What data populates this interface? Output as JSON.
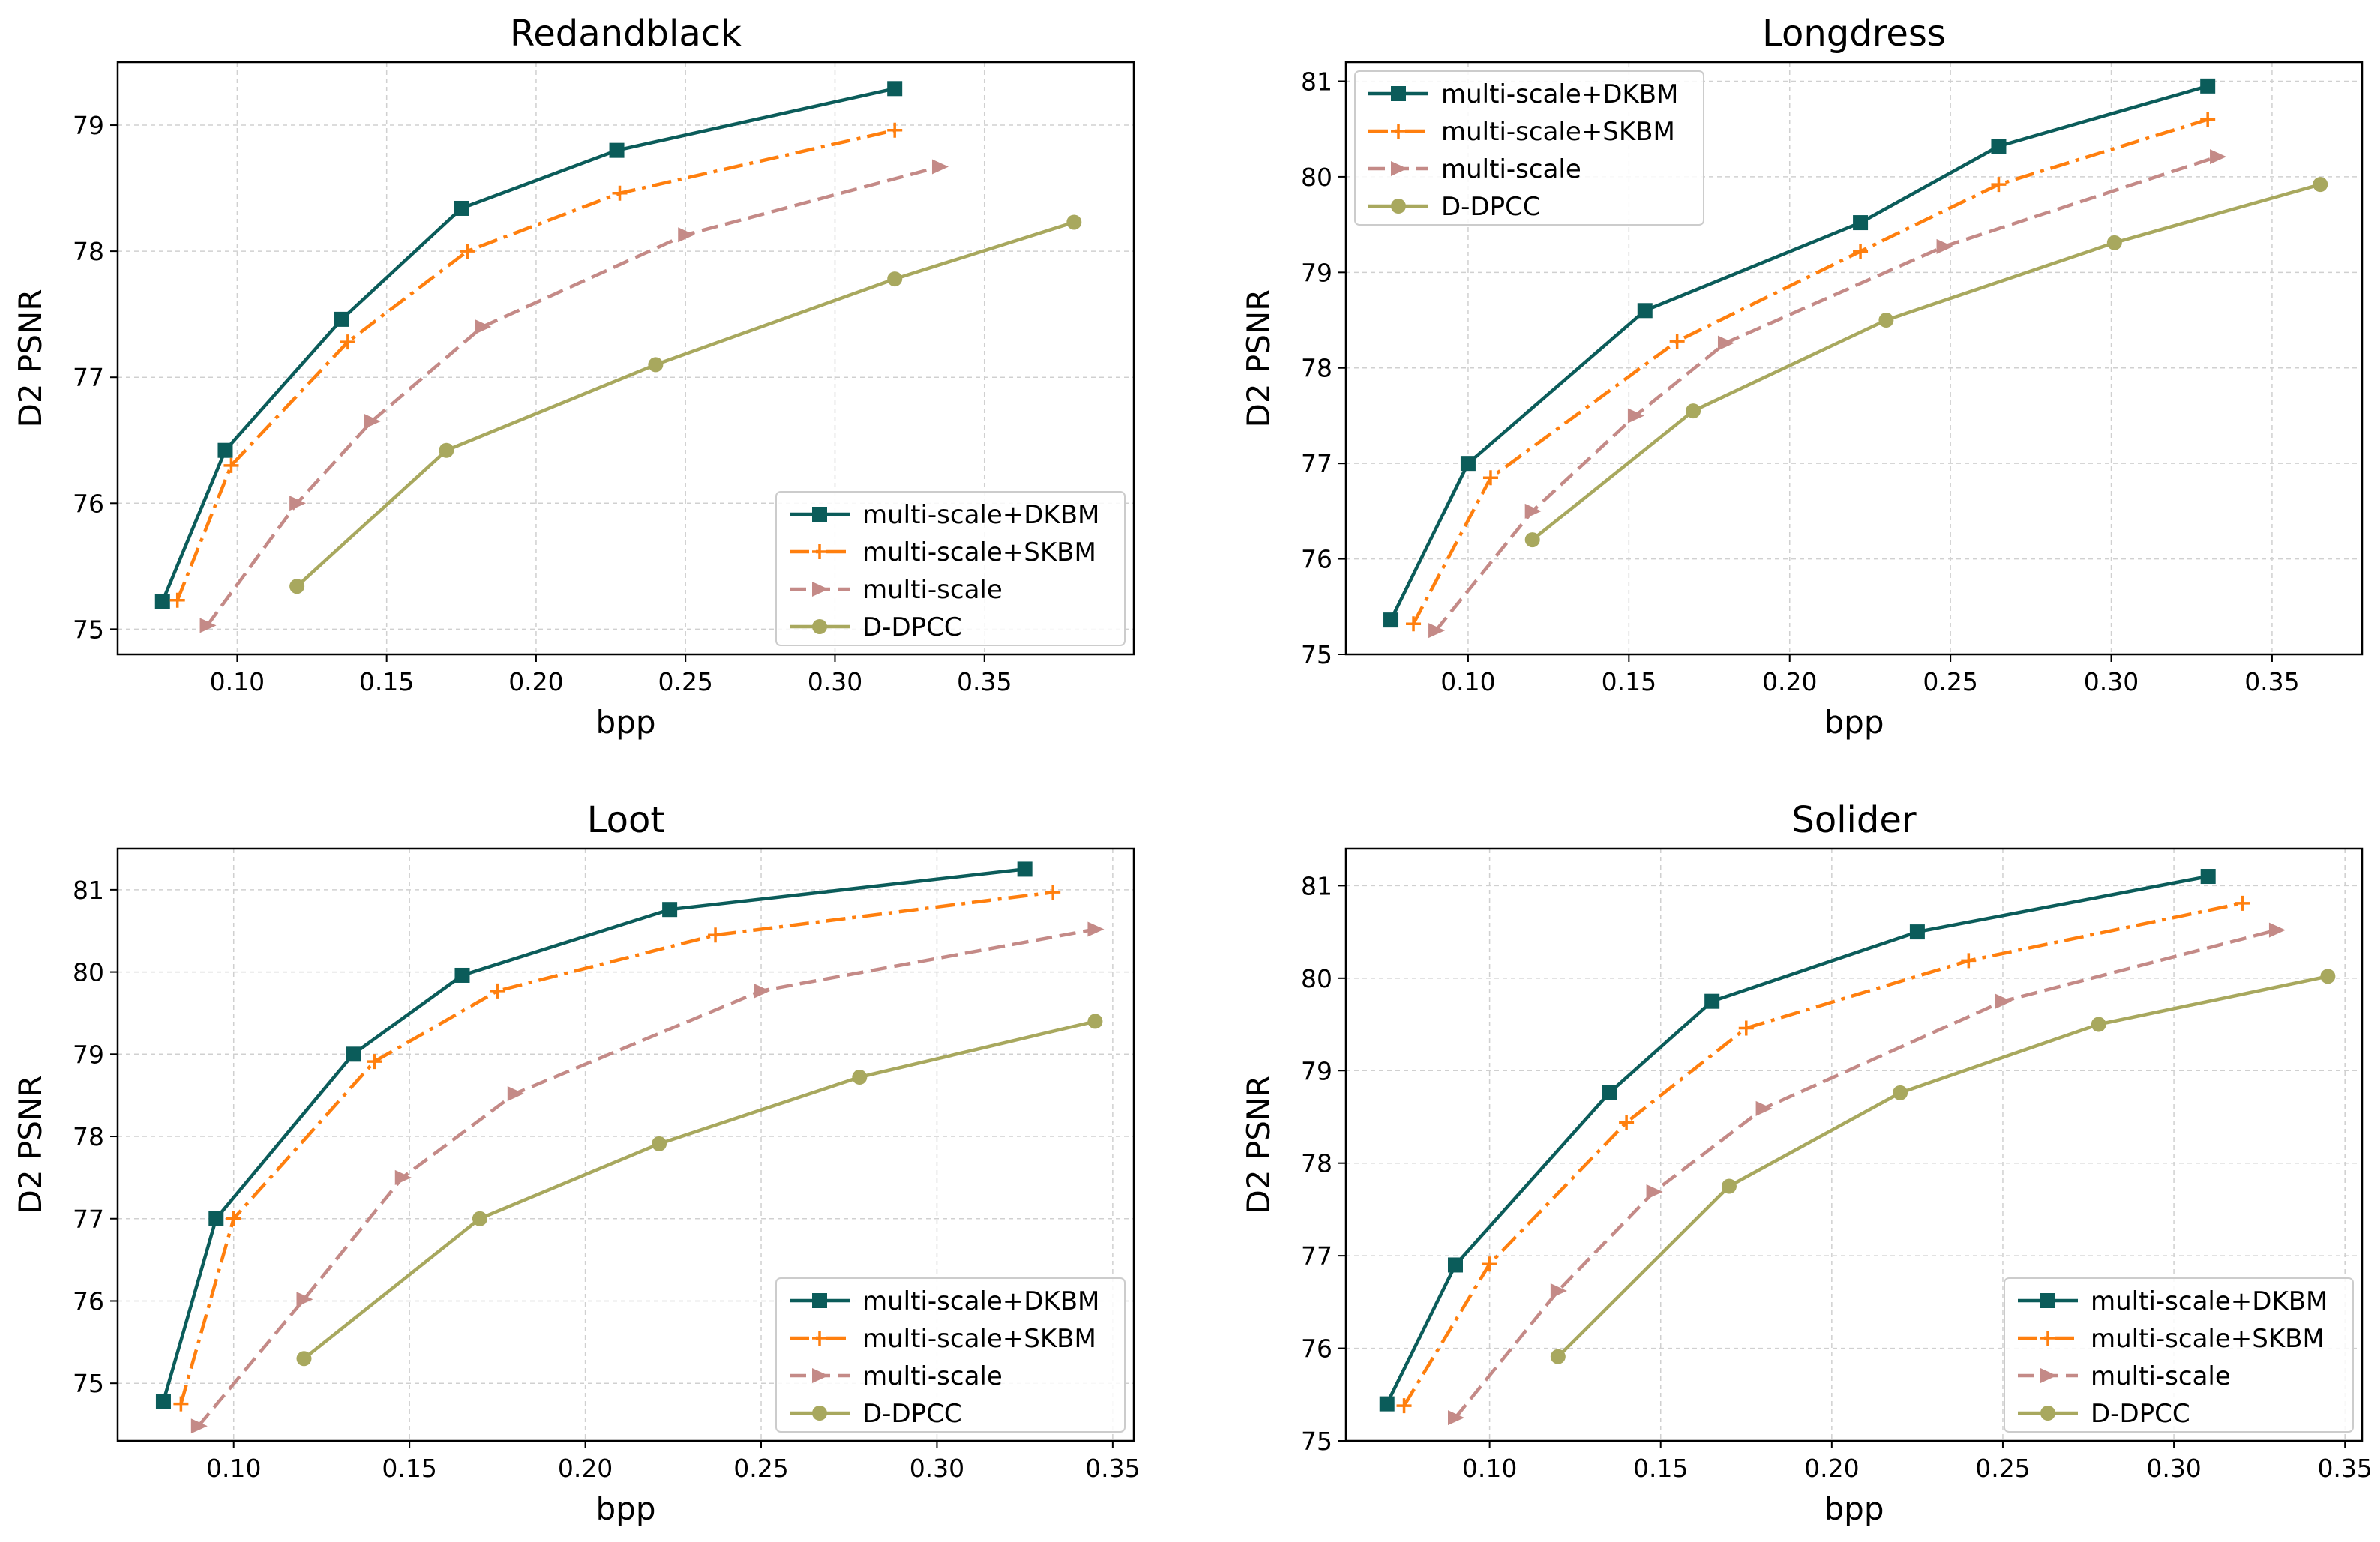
{
  "chart_data": [
    {
      "type": "line",
      "title": "Redandblack",
      "xlabel": "bpp",
      "ylabel": "D2 PSNR",
      "xlim": [
        0.06,
        0.4
      ],
      "ylim": [
        74.8,
        79.5
      ],
      "xticks": [
        "0.10",
        "0.15",
        "0.20",
        "0.25",
        "0.30",
        "0.35"
      ],
      "yticks": [
        "75",
        "76",
        "77",
        "78",
        "79"
      ],
      "grid": true,
      "legend_position": "lower-right",
      "series": [
        {
          "name": "multi-scale+DKBM",
          "color": "#0b5c5a",
          "dash": "solid",
          "marker": "square",
          "x": [
            0.075,
            0.096,
            0.135,
            0.175,
            0.227,
            0.32
          ],
          "y": [
            75.22,
            76.42,
            77.46,
            78.34,
            78.8,
            79.29
          ]
        },
        {
          "name": "multi-scale+SKBM",
          "color": "#ff7f0e",
          "dash": "dashdot",
          "marker": "plus",
          "x": [
            0.08,
            0.098,
            0.137,
            0.177,
            0.228,
            0.32
          ],
          "y": [
            75.23,
            76.3,
            77.28,
            78.0,
            78.46,
            78.96
          ]
        },
        {
          "name": "multi-scale",
          "color": "#c48a87",
          "dash": "dashed",
          "marker": "triangle-right",
          "x": [
            0.09,
            0.12,
            0.145,
            0.182,
            0.25,
            0.335
          ],
          "y": [
            75.03,
            76.0,
            76.65,
            77.4,
            78.13,
            78.67
          ]
        },
        {
          "name": "D-DPCC",
          "color": "#a8a85e",
          "dash": "solid",
          "marker": "circle",
          "x": [
            0.12,
            0.17,
            0.24,
            0.32,
            0.38
          ],
          "y": [
            75.34,
            76.42,
            77.1,
            77.78,
            78.23
          ]
        }
      ]
    },
    {
      "type": "line",
      "title": "Longdress",
      "xlabel": "bpp",
      "ylabel": "D2 PSNR",
      "xlim": [
        0.062,
        0.378
      ],
      "ylim": [
        75.0,
        81.2
      ],
      "xticks": [
        "0.10",
        "0.15",
        "0.20",
        "0.25",
        "0.30",
        "0.35"
      ],
      "yticks": [
        "75",
        "76",
        "77",
        "78",
        "79",
        "80",
        "81"
      ],
      "grid": true,
      "legend_position": "upper-left",
      "series": [
        {
          "name": "multi-scale+DKBM",
          "color": "#0b5c5a",
          "dash": "solid",
          "marker": "square",
          "x": [
            0.076,
            0.1,
            0.155,
            0.222,
            0.265,
            0.33
          ],
          "y": [
            75.36,
            77.0,
            78.6,
            79.52,
            80.32,
            80.95
          ]
        },
        {
          "name": "multi-scale+SKBM",
          "color": "#ff7f0e",
          "dash": "dashdot",
          "marker": "plus",
          "x": [
            0.083,
            0.107,
            0.165,
            0.222,
            0.265,
            0.33
          ],
          "y": [
            75.32,
            76.85,
            78.28,
            79.22,
            79.92,
            80.6
          ]
        },
        {
          "name": "multi-scale",
          "color": "#c48a87",
          "dash": "dashed",
          "marker": "triangle-right",
          "x": [
            0.09,
            0.12,
            0.152,
            0.18,
            0.248,
            0.333
          ],
          "y": [
            75.25,
            76.5,
            77.5,
            78.26,
            79.27,
            80.21
          ]
        },
        {
          "name": "D-DPCC",
          "color": "#a8a85e",
          "dash": "solid",
          "marker": "circle",
          "x": [
            0.12,
            0.17,
            0.23,
            0.301,
            0.365
          ],
          "y": [
            76.2,
            77.55,
            78.5,
            79.31,
            79.92
          ]
        }
      ]
    },
    {
      "type": "line",
      "title": "Loot",
      "xlabel": "bpp",
      "ylabel": "D2 PSNR",
      "xlim": [
        0.067,
        0.356
      ],
      "ylim": [
        74.3,
        81.5
      ],
      "xticks": [
        "0.10",
        "0.15",
        "0.20",
        "0.25",
        "0.30",
        "0.35"
      ],
      "yticks": [
        "75",
        "76",
        "77",
        "78",
        "79",
        "80",
        "81"
      ],
      "grid": true,
      "legend_position": "lower-right",
      "series": [
        {
          "name": "multi-scale+DKBM",
          "color": "#0b5c5a",
          "dash": "solid",
          "marker": "square",
          "x": [
            0.08,
            0.095,
            0.134,
            0.165,
            0.224,
            0.325
          ],
          "y": [
            74.78,
            77.0,
            79.0,
            79.96,
            80.76,
            81.25
          ]
        },
        {
          "name": "multi-scale+SKBM",
          "color": "#ff7f0e",
          "dash": "dashdot",
          "marker": "plus",
          "x": [
            0.085,
            0.1,
            0.14,
            0.175,
            0.237,
            0.333
          ],
          "y": [
            74.75,
            77.0,
            78.91,
            79.77,
            80.45,
            80.97
          ]
        },
        {
          "name": "multi-scale",
          "color": "#c48a87",
          "dash": "dashed",
          "marker": "triangle-right",
          "x": [
            0.09,
            0.12,
            0.148,
            0.18,
            0.25,
            0.345
          ],
          "y": [
            74.48,
            76.02,
            77.5,
            78.52,
            79.77,
            80.52
          ]
        },
        {
          "name": "D-DPCC",
          "color": "#a8a85e",
          "dash": "solid",
          "marker": "circle",
          "x": [
            0.12,
            0.17,
            0.221,
            0.278,
            0.345
          ],
          "y": [
            75.3,
            77.0,
            77.91,
            78.72,
            79.4
          ]
        }
      ]
    },
    {
      "type": "line",
      "title": "Solider",
      "xlabel": "bpp",
      "ylabel": "D2 PSNR",
      "xlim": [
        0.058,
        0.355
      ],
      "ylim": [
        75.0,
        81.4
      ],
      "xticks": [
        "0.10",
        "0.15",
        "0.20",
        "0.25",
        "0.30",
        "0.35"
      ],
      "yticks": [
        "75",
        "76",
        "77",
        "78",
        "79",
        "80",
        "81"
      ],
      "grid": true,
      "legend_position": "lower-right",
      "series": [
        {
          "name": "multi-scale+DKBM",
          "color": "#0b5c5a",
          "dash": "solid",
          "marker": "square",
          "x": [
            0.07,
            0.09,
            0.135,
            0.165,
            0.225,
            0.31
          ],
          "y": [
            75.4,
            76.9,
            78.76,
            79.75,
            80.5,
            81.1
          ]
        },
        {
          "name": "multi-scale+SKBM",
          "color": "#ff7f0e",
          "dash": "dashdot",
          "marker": "plus",
          "x": [
            0.075,
            0.1,
            0.14,
            0.175,
            0.24,
            0.32
          ],
          "y": [
            75.38,
            76.91,
            78.44,
            79.46,
            80.19,
            80.81
          ]
        },
        {
          "name": "multi-scale",
          "color": "#c48a87",
          "dash": "dashed",
          "marker": "triangle-right",
          "x": [
            0.09,
            0.12,
            0.148,
            0.18,
            0.25,
            0.33
          ],
          "y": [
            75.25,
            76.62,
            77.69,
            78.59,
            79.75,
            80.52
          ]
        },
        {
          "name": "D-DPCC",
          "color": "#a8a85e",
          "dash": "solid",
          "marker": "circle",
          "x": [
            0.12,
            0.17,
            0.22,
            0.278,
            0.345
          ],
          "y": [
            75.91,
            77.75,
            78.76,
            79.5,
            80.02
          ]
        }
      ]
    }
  ]
}
